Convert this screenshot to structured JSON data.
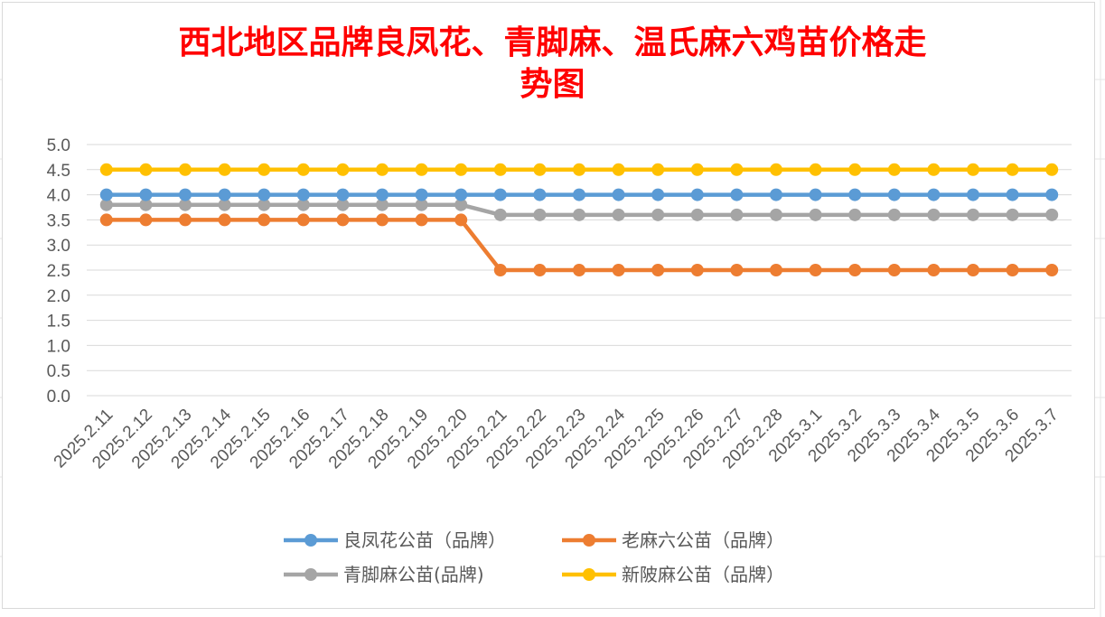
{
  "chart_data": {
    "type": "line",
    "title_line1": "西北地区品牌良凤花、青脚麻、温氏麻六鸡苗价格走",
    "title_line2": "势图",
    "xlabel": "",
    "ylabel": "",
    "ylim": [
      0,
      5
    ],
    "y_ticks": [
      "5.0",
      "4.5",
      "4.0",
      "3.5",
      "3.0",
      "2.5",
      "2.0",
      "1.5",
      "1.0",
      "0.5",
      "0.0"
    ],
    "grid": true,
    "legend_position": "bottom",
    "categories": [
      "2025.2.11",
      "2025.2.12",
      "2025.2.13",
      "2025.2.14",
      "2025.2.15",
      "2025.2.16",
      "2025.2.17",
      "2025.2.18",
      "2025.2.19",
      "2025.2.20",
      "2025.2.21",
      "2025.2.22",
      "2025.2.23",
      "2025.2.24",
      "2025.2.25",
      "2025.2.26",
      "2025.2.27",
      "2025.2.28",
      "2025.3.1",
      "2025.3.2",
      "2025.3.3",
      "2025.3.4",
      "2025.3.5",
      "2025.3.6",
      "2025.3.7"
    ],
    "series": [
      {
        "name": "良凤花公苗（品牌）",
        "color": "#5b9bd5",
        "values": [
          4.0,
          4.0,
          4.0,
          4.0,
          4.0,
          4.0,
          4.0,
          4.0,
          4.0,
          4.0,
          4.0,
          4.0,
          4.0,
          4.0,
          4.0,
          4.0,
          4.0,
          4.0,
          4.0,
          4.0,
          4.0,
          4.0,
          4.0,
          4.0,
          4.0
        ]
      },
      {
        "name": "老麻六公苗（品牌）",
        "color": "#ed7d31",
        "values": [
          3.5,
          3.5,
          3.5,
          3.5,
          3.5,
          3.5,
          3.5,
          3.5,
          3.5,
          3.5,
          2.5,
          2.5,
          2.5,
          2.5,
          2.5,
          2.5,
          2.5,
          2.5,
          2.5,
          2.5,
          2.5,
          2.5,
          2.5,
          2.5,
          2.5
        ]
      },
      {
        "name": "青脚麻公苗(品牌)",
        "color": "#a5a5a5",
        "values": [
          3.8,
          3.8,
          3.8,
          3.8,
          3.8,
          3.8,
          3.8,
          3.8,
          3.8,
          3.8,
          3.6,
          3.6,
          3.6,
          3.6,
          3.6,
          3.6,
          3.6,
          3.6,
          3.6,
          3.6,
          3.6,
          3.6,
          3.6,
          3.6,
          3.6
        ]
      },
      {
        "name": "新陂麻公苗（品牌）",
        "color": "#ffc000",
        "values": [
          4.5,
          4.5,
          4.5,
          4.5,
          4.5,
          4.5,
          4.5,
          4.5,
          4.5,
          4.5,
          4.5,
          4.5,
          4.5,
          4.5,
          4.5,
          4.5,
          4.5,
          4.5,
          4.5,
          4.5,
          4.5,
          4.5,
          4.5,
          4.5,
          4.5
        ]
      }
    ],
    "draw_order": [
      2,
      1,
      0,
      3
    ]
  }
}
